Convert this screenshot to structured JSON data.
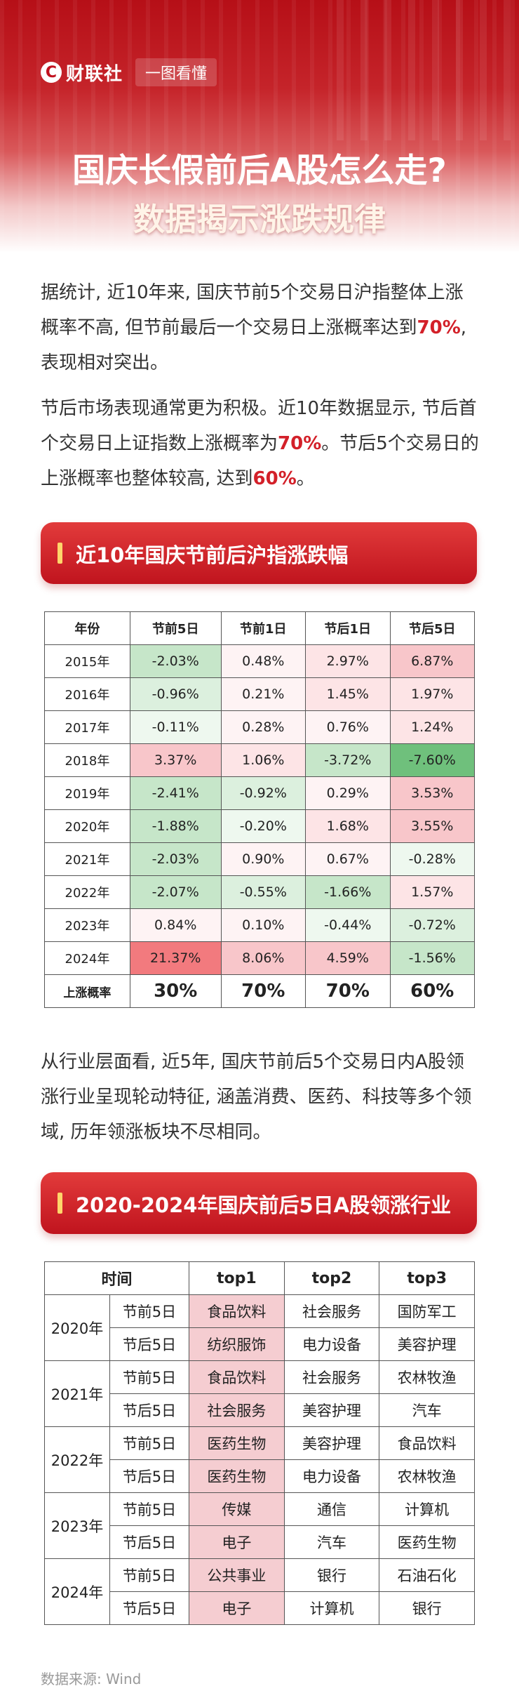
{
  "header": {
    "logo_mark": "C",
    "logo_text": "财联社",
    "tag": "一图看懂",
    "title_line1": "国庆长假前后A股怎么走?",
    "title_line2": "数据揭示涨跌规律"
  },
  "intro": {
    "p1_a": "据统计, 近10年来, 国庆节前5个交易日沪指整体上涨概率不高, 但节前最后一个交易日上涨概率达到",
    "p1_hl": "70%",
    "p1_b": ", 表现相对突出。",
    "p2_a": "节后市场表现通常更为积极。近10年数据显示, 节后首个交易日上证指数上涨概率为",
    "p2_hl1": "70%",
    "p2_b": "。节后5个交易日的上涨概率也整体较高, 达到",
    "p2_hl2": "60%",
    "p2_c": "。"
  },
  "section1": {
    "title": "近10年国庆节前后沪指涨跌幅"
  },
  "table1": {
    "headers": [
      "年份",
      "节前5日",
      "节前1日",
      "节后1日",
      "节后5日"
    ],
    "rows": [
      {
        "year": "2015年",
        "cells": [
          "-2.03%",
          "0.48%",
          "2.97%",
          "6.87%"
        ]
      },
      {
        "year": "2016年",
        "cells": [
          "-0.96%",
          "0.21%",
          "1.45%",
          "1.97%"
        ]
      },
      {
        "year": "2017年",
        "cells": [
          "-0.11%",
          "0.28%",
          "0.76%",
          "1.24%"
        ]
      },
      {
        "year": "2018年",
        "cells": [
          "3.37%",
          "1.06%",
          "-3.72%",
          "-7.60%"
        ]
      },
      {
        "year": "2019年",
        "cells": [
          "-2.41%",
          "-0.92%",
          "0.29%",
          "3.53%"
        ]
      },
      {
        "year": "2020年",
        "cells": [
          "-1.88%",
          "-0.20%",
          "1.68%",
          "3.55%"
        ]
      },
      {
        "year": "2021年",
        "cells": [
          "-2.03%",
          "0.90%",
          "0.67%",
          "-0.28%"
        ]
      },
      {
        "year": "2022年",
        "cells": [
          "-2.07%",
          "-0.55%",
          "-1.66%",
          "1.57%"
        ]
      },
      {
        "year": "2023年",
        "cells": [
          "0.84%",
          "0.10%",
          "-0.44%",
          "-0.72%"
        ]
      },
      {
        "year": "2024年",
        "cells": [
          "21.37%",
          "8.06%",
          "4.59%",
          "-1.56%"
        ]
      }
    ],
    "summary": {
      "label": "上涨概率",
      "cells": [
        "30%",
        "70%",
        "70%",
        "60%"
      ]
    },
    "colors": {
      "up_strong": "#f27a7e",
      "up_mid": "#f8c6ca",
      "up_light": "#fde4e6",
      "up_faint": "#fef3f4",
      "down_strong": "#6fc07c",
      "down_mid": "#c6e6c9",
      "down_light": "#dcf0de",
      "down_faint": "#eef8ef"
    }
  },
  "paragraph3": "从行业层面看, 近5年, 国庆节前后5个交易日内A股领涨行业呈现轮动特征, 涵盖消费、医药、科技等多个领域, 历年领涨板块不尽相同。",
  "section2": {
    "title": "2020-2024年国庆前后5日A股领涨行业"
  },
  "table2": {
    "headers": [
      "时间",
      "top1",
      "top2",
      "top3"
    ],
    "groups": [
      {
        "year": "2020年",
        "rows": [
          {
            "period": "节前5日",
            "cells": [
              "食品饮料",
              "社会服务",
              "国防军工"
            ]
          },
          {
            "period": "节后5日",
            "cells": [
              "纺织服饰",
              "电力设备",
              "美容护理"
            ]
          }
        ]
      },
      {
        "year": "2021年",
        "rows": [
          {
            "period": "节前5日",
            "cells": [
              "食品饮料",
              "社会服务",
              "农林牧渔"
            ]
          },
          {
            "period": "节后5日",
            "cells": [
              "社会服务",
              "美容护理",
              "汽车"
            ]
          }
        ]
      },
      {
        "year": "2022年",
        "rows": [
          {
            "period": "节前5日",
            "cells": [
              "医药生物",
              "美容护理",
              "食品饮料"
            ]
          },
          {
            "period": "节后5日",
            "cells": [
              "医药生物",
              "电力设备",
              "农林牧渔"
            ]
          }
        ]
      },
      {
        "year": "2023年",
        "rows": [
          {
            "period": "节前5日",
            "cells": [
              "传媒",
              "通信",
              "计算机"
            ]
          },
          {
            "period": "节后5日",
            "cells": [
              "电子",
              "汽车",
              "医药生物"
            ]
          }
        ]
      },
      {
        "year": "2024年",
        "rows": [
          {
            "period": "节前5日",
            "cells": [
              "公共事业",
              "银行",
              "石油石化"
            ]
          },
          {
            "period": "节后5日",
            "cells": [
              "电子",
              "计算机",
              "银行"
            ]
          }
        ]
      }
    ]
  },
  "footer": {
    "source": "数据来源: Wind"
  }
}
